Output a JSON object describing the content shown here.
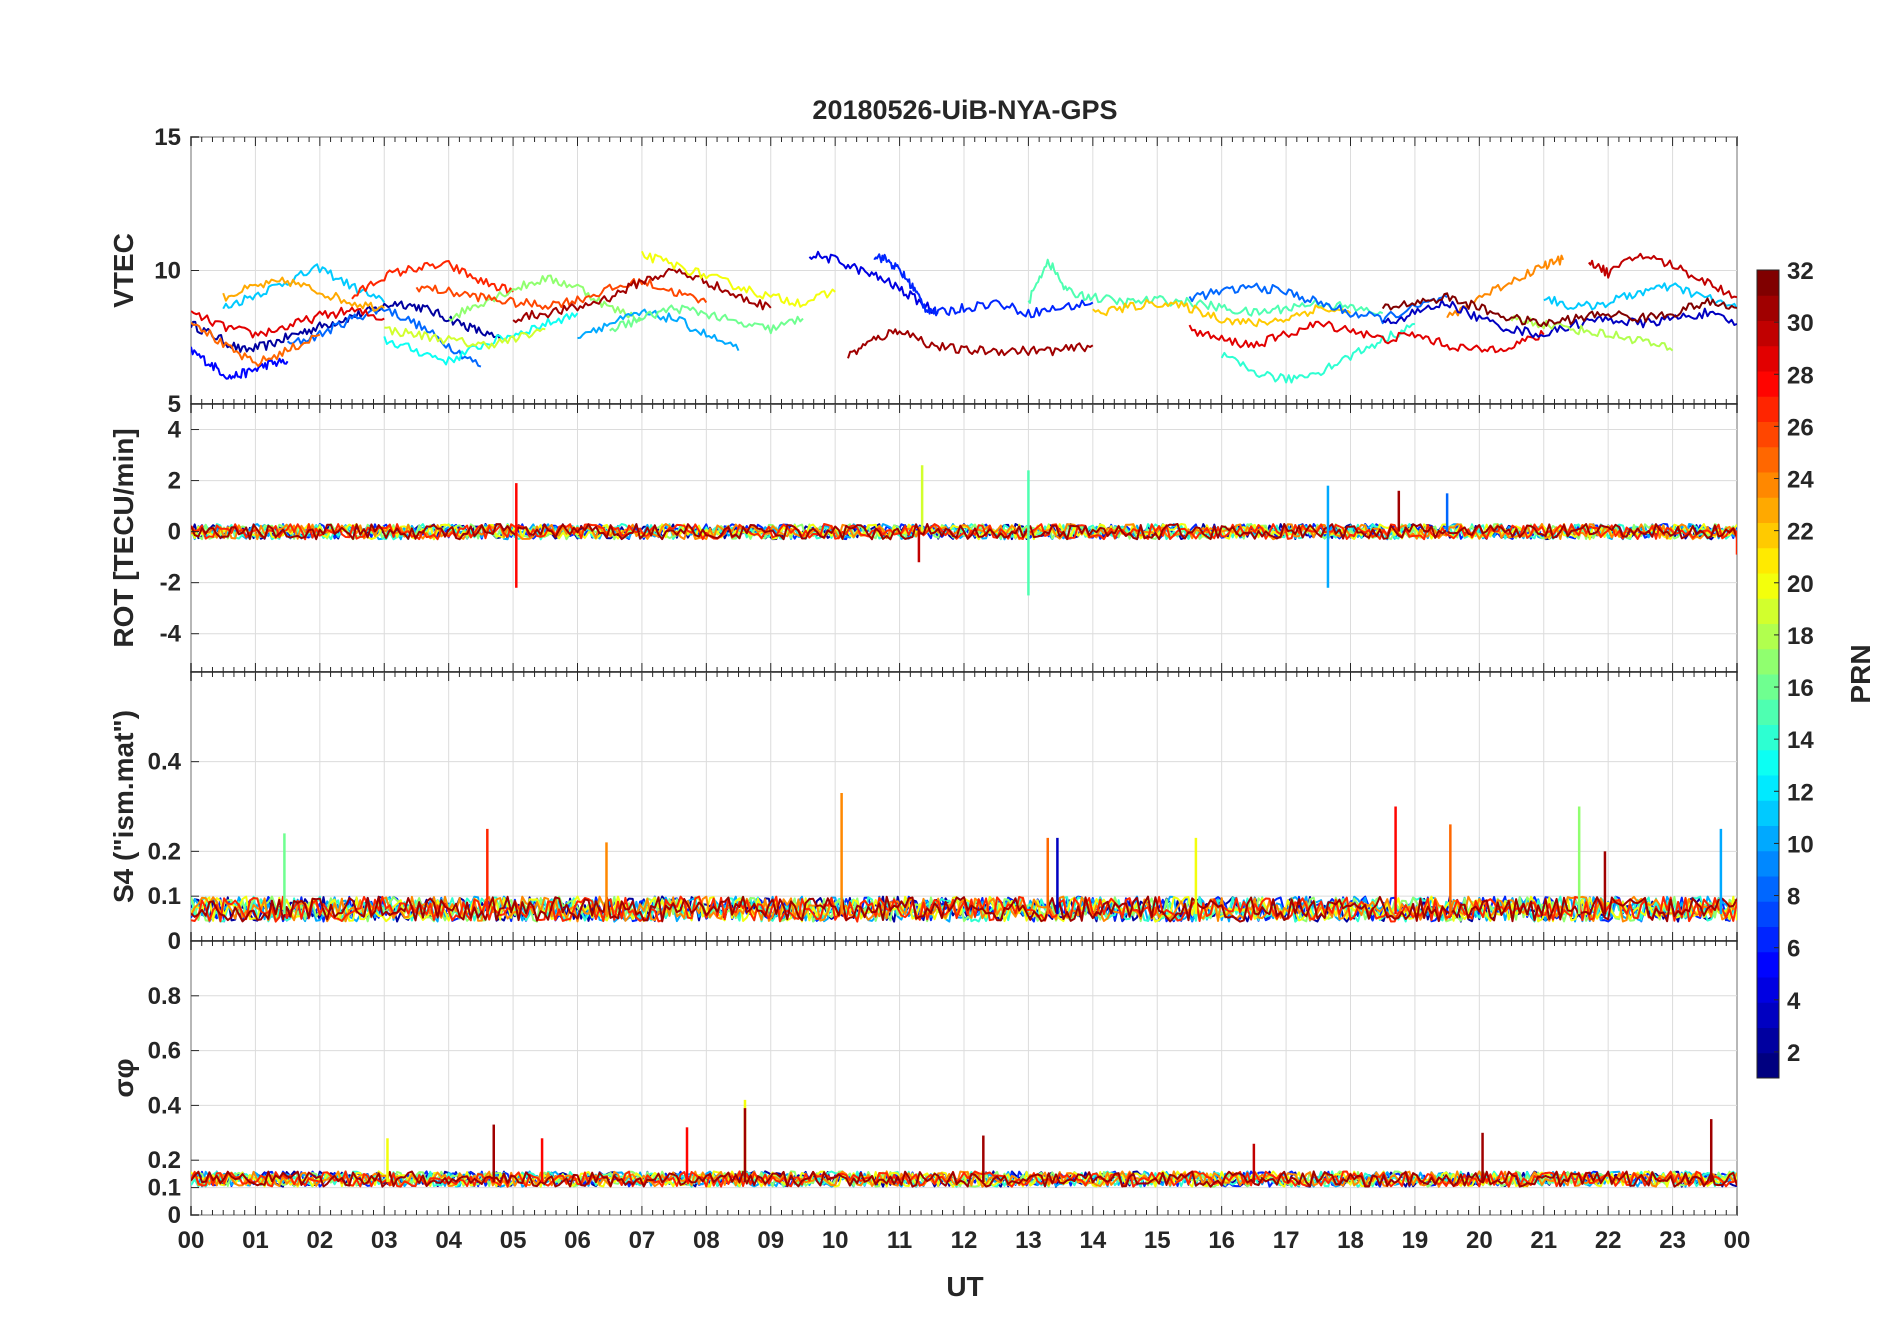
{
  "chart_data": {
    "type": "line",
    "title": "20180526-UiB-NYA-GPS",
    "xlabel": "UT",
    "x_tick_labels": [
      "00",
      "01",
      "02",
      "03",
      "04",
      "05",
      "06",
      "07",
      "08",
      "09",
      "10",
      "11",
      "12",
      "13",
      "14",
      "15",
      "16",
      "17",
      "18",
      "19",
      "20",
      "21",
      "22",
      "23",
      "00"
    ],
    "xlim": [
      0,
      24
    ],
    "colorbar": {
      "label": "PRN",
      "ticks": [
        "2",
        "4",
        "6",
        "8",
        "10",
        "12",
        "14",
        "16",
        "18",
        "20",
        "22",
        "24",
        "26",
        "28",
        "30",
        "32"
      ],
      "range": [
        1,
        32
      ],
      "colormap": "jet"
    },
    "panels": [
      {
        "id": "vtec",
        "ylabel": "VTEC",
        "ylim": [
          5,
          15
        ],
        "y_ticks": [
          5,
          10,
          15
        ],
        "y_tick_labels": [
          "5",
          "10",
          "15"
        ],
        "series": [
          {
            "prn": 2,
            "x": [
              0.0,
              0.4,
              0.8,
              1.2,
              1.6,
              2.0,
              2.4,
              2.8,
              3.2,
              3.6,
              4.0,
              4.4,
              4.8
            ],
            "y": [
              8.0,
              7.5,
              7.0,
              7.2,
              7.6,
              7.9,
              8.2,
              8.5,
              8.8,
              8.6,
              8.2,
              7.8,
              7.4
            ]
          },
          {
            "prn": 5,
            "x": [
              0.0,
              0.3,
              0.6,
              0.9,
              1.2,
              1.5
            ],
            "y": [
              7.0,
              6.5,
              6.0,
              6.2,
              6.5,
              6.6
            ]
          },
          {
            "prn": 8,
            "x": [
              1.5,
              2.0,
              2.5,
              3.0,
              3.5,
              4.0,
              4.5
            ],
            "y": [
              7.2,
              7.6,
              8.2,
              8.6,
              8.0,
              7.2,
              6.4
            ]
          },
          {
            "prn": 11,
            "x": [
              0.5,
              1.0,
              1.5,
              2.0,
              2.5,
              3.0
            ],
            "y": [
              8.6,
              9.1,
              9.6,
              10.1,
              9.4,
              8.8
            ]
          },
          {
            "prn": 13,
            "x": [
              3.0,
              3.5,
              4.0,
              4.5,
              5.0,
              5.5,
              6.0
            ],
            "y": [
              7.4,
              7.0,
              6.6,
              7.2,
              7.6,
              8.0,
              8.4
            ]
          },
          {
            "prn": 23,
            "x": [
              0.5,
              1.0,
              1.5,
              2.0,
              2.5,
              3.0
            ],
            "y": [
              9.0,
              9.4,
              9.6,
              9.2,
              8.8,
              8.6
            ]
          },
          {
            "prn": 25,
            "x": [
              0.0,
              0.5,
              1.0,
              1.5,
              2.0
            ],
            "y": [
              8.2,
              7.2,
              6.5,
              7.0,
              7.6
            ]
          },
          {
            "prn": 27,
            "x": [
              2.5,
              3.0,
              3.5,
              4.0,
              4.5,
              5.0
            ],
            "y": [
              9.0,
              9.8,
              10.1,
              10.2,
              9.6,
              9.2
            ]
          },
          {
            "prn": 29,
            "x": [
              0.0,
              0.5,
              1.0,
              1.5,
              2.0,
              2.5,
              3.0
            ],
            "y": [
              8.4,
              7.9,
              7.6,
              7.9,
              8.3,
              8.5,
              8.2
            ]
          },
          {
            "prn": 17,
            "x": [
              4.0,
              4.5,
              5.0,
              5.5,
              6.0,
              6.5,
              7.0
            ],
            "y": [
              8.2,
              8.8,
              9.3,
              9.7,
              9.4,
              8.6,
              8.2
            ]
          },
          {
            "prn": 19,
            "x": [
              3.0,
              3.5,
              4.0,
              4.5,
              5.0,
              5.5
            ],
            "y": [
              7.8,
              7.6,
              7.4,
              7.2,
              7.4,
              7.8
            ]
          },
          {
            "prn": 26,
            "x": [
              3.5,
              4.0,
              4.5,
              5.0,
              5.5,
              6.0,
              6.5,
              7.0,
              7.5,
              8.0
            ],
            "y": [
              9.4,
              9.2,
              9.0,
              8.8,
              8.7,
              8.9,
              9.3,
              9.6,
              9.2,
              8.8
            ]
          },
          {
            "prn": 31,
            "x": [
              5.0,
              5.5,
              6.0,
              6.5,
              7.0,
              7.5,
              8.0,
              8.5,
              9.0
            ],
            "y": [
              8.2,
              8.4,
              8.6,
              9.0,
              9.6,
              10.0,
              9.6,
              9.0,
              8.6
            ]
          },
          {
            "prn": 10,
            "x": [
              6.0,
              6.5,
              7.0,
              7.5,
              8.0,
              8.5
            ],
            "y": [
              7.6,
              8.0,
              8.4,
              8.2,
              7.6,
              7.0
            ]
          },
          {
            "prn": 20,
            "x": [
              7.0,
              7.5,
              8.0,
              8.5,
              9.0,
              9.5,
              10.0
            ],
            "y": [
              10.6,
              10.2,
              9.8,
              9.4,
              9.0,
              8.8,
              9.2
            ]
          },
          {
            "prn": 16,
            "x": [
              6.5,
              7.0,
              7.5,
              8.0,
              8.5,
              9.0,
              9.5
            ],
            "y": [
              7.8,
              8.2,
              8.6,
              8.4,
              8.0,
              7.8,
              8.2
            ]
          },
          {
            "prn": 4,
            "x": [
              9.6,
              10.0,
              10.4,
              10.8,
              11.2,
              11.6
            ],
            "y": [
              10.6,
              10.4,
              10.0,
              9.6,
              9.0,
              8.4
            ]
          },
          {
            "prn": 6,
            "x": [
              10.6,
              10.8,
              11.0,
              11.2,
              11.4,
              11.6,
              12.0,
              12.5,
              13.0,
              13.5,
              14.0
            ],
            "y": [
              10.6,
              10.4,
              10.0,
              9.4,
              8.6,
              8.4,
              8.6,
              8.8,
              8.4,
              8.6,
              8.8
            ]
          },
          {
            "prn": 31,
            "x": [
              10.2,
              10.6,
              11.0,
              11.5,
              12.0,
              12.5,
              13.0,
              13.5,
              14.0
            ],
            "y": [
              6.8,
              7.4,
              7.8,
              7.2,
              7.0,
              7.0,
              7.0,
              7.0,
              7.2
            ]
          },
          {
            "prn": 15,
            "x": [
              13.0,
              13.3,
              13.6,
              14.0,
              14.5,
              15.0,
              15.5,
              16.0,
              16.5,
              17.0,
              17.5,
              18.0,
              18.5
            ],
            "y": [
              8.8,
              10.4,
              9.2,
              9.0,
              8.8,
              8.9,
              8.8,
              8.6,
              8.4,
              8.6,
              8.8,
              8.6,
              8.4
            ]
          },
          {
            "prn": 22,
            "x": [
              14.0,
              14.5,
              15.0,
              15.5,
              16.0,
              16.5,
              17.0,
              17.5,
              18.0
            ],
            "y": [
              8.4,
              8.6,
              8.8,
              8.6,
              8.2,
              8.0,
              8.2,
              8.6,
              8.4
            ]
          },
          {
            "prn": 8,
            "x": [
              15.5,
              16.0,
              16.5,
              17.0,
              17.5,
              18.0,
              18.5,
              19.0,
              19.5
            ],
            "y": [
              9.0,
              9.2,
              9.4,
              9.2,
              8.8,
              8.4,
              8.2,
              8.6,
              9.0
            ]
          },
          {
            "prn": 14,
            "x": [
              16.0,
              16.5,
              17.0,
              17.5,
              18.0,
              18.5,
              19.0
            ],
            "y": [
              6.8,
              6.2,
              5.9,
              6.2,
              6.8,
              7.4,
              8.0
            ]
          },
          {
            "prn": 29,
            "x": [
              15.5,
              16.0,
              16.5,
              17.0,
              17.5,
              18.0,
              18.5,
              19.0,
              19.5,
              20.0,
              20.5,
              21.0
            ],
            "y": [
              7.8,
              7.4,
              7.2,
              7.6,
              8.0,
              7.8,
              7.4,
              7.6,
              7.2,
              7.0,
              7.2,
              7.6
            ]
          },
          {
            "prn": 24,
            "x": [
              19.5,
              20.0,
              20.5,
              21.0,
              21.3
            ],
            "y": [
              8.2,
              9.0,
              9.6,
              10.2,
              10.4
            ]
          },
          {
            "prn": 30,
            "x": [
              21.7,
              22.0,
              22.5,
              23.0,
              23.5,
              24.0
            ],
            "y": [
              10.4,
              9.9,
              10.6,
              10.2,
              9.6,
              9.0
            ]
          },
          {
            "prn": 11,
            "x": [
              21.0,
              21.5,
              22.0,
              22.5,
              23.0,
              23.5,
              24.0
            ],
            "y": [
              9.0,
              8.6,
              8.8,
              9.2,
              9.4,
              9.0,
              8.6
            ]
          },
          {
            "prn": 3,
            "x": [
              18.5,
              19.0,
              19.5,
              20.0,
              20.5,
              21.0,
              21.5,
              22.0,
              22.5,
              23.0,
              23.5,
              24.0
            ],
            "y": [
              8.0,
              8.4,
              8.8,
              8.2,
              7.8,
              7.6,
              8.0,
              8.2,
              8.0,
              8.2,
              8.4,
              8.0
            ]
          },
          {
            "prn": 18,
            "x": [
              20.5,
              21.0,
              21.5,
              22.0,
              22.5,
              23.0
            ],
            "y": [
              8.2,
              8.0,
              7.8,
              7.6,
              7.4,
              7.0
            ]
          },
          {
            "prn": 32,
            "x": [
              18.5,
              19.0,
              19.5,
              20.0,
              20.5,
              21.0,
              21.5,
              22.0,
              22.5,
              23.0,
              23.5,
              24.0
            ],
            "y": [
              8.6,
              8.8,
              9.0,
              8.6,
              8.2,
              8.0,
              8.2,
              8.4,
              8.2,
              8.4,
              8.8,
              8.6
            ]
          }
        ]
      },
      {
        "id": "rot",
        "ylabel": "ROT [TECU/min]",
        "ylim": [
          -5.5,
          5
        ],
        "y_ticks": [
          -4,
          -2,
          0,
          2,
          4
        ],
        "y_tick_labels": [
          "-4",
          "-2",
          "0",
          "2",
          "4"
        ],
        "baseline": 0,
        "noise_amplitude": 0.3,
        "spikes": [
          {
            "x": 5.05,
            "y": 1.9,
            "prn": 28
          },
          {
            "x": 5.05,
            "y": -2.2,
            "prn": 28
          },
          {
            "x": 11.35,
            "y": 2.6,
            "prn": 19
          },
          {
            "x": 11.3,
            "y": -1.2,
            "prn": 30
          },
          {
            "x": 13.0,
            "y": 2.4,
            "prn": 15
          },
          {
            "x": 13.0,
            "y": -2.5,
            "prn": 15
          },
          {
            "x": 17.65,
            "y": 1.8,
            "prn": 10
          },
          {
            "x": 17.65,
            "y": -2.2,
            "prn": 10
          },
          {
            "x": 18.75,
            "y": 1.6,
            "prn": 31
          },
          {
            "x": 19.5,
            "y": 1.5,
            "prn": 8
          },
          {
            "x": 24.0,
            "y": -0.9,
            "prn": 27
          }
        ]
      },
      {
        "id": "s4",
        "ylabel": "S4 (\"ism.mat\")",
        "ylim": [
          0,
          0.6
        ],
        "y_ticks": [
          0,
          0.1,
          0.2,
          0.4
        ],
        "y_tick_labels": [
          "0",
          "0.1",
          "0.2",
          "0.4"
        ],
        "baseline": 0.06,
        "noise_amplitude": 0.04,
        "spikes": [
          {
            "x": 1.45,
            "y": 0.24,
            "prn": 16
          },
          {
            "x": 4.6,
            "y": 0.25,
            "prn": 27
          },
          {
            "x": 6.45,
            "y": 0.22,
            "prn": 24
          },
          {
            "x": 10.1,
            "y": 0.33,
            "prn": 24
          },
          {
            "x": 13.3,
            "y": 0.23,
            "prn": 25
          },
          {
            "x": 13.45,
            "y": 0.23,
            "prn": 3
          },
          {
            "x": 15.6,
            "y": 0.23,
            "prn": 20
          },
          {
            "x": 18.7,
            "y": 0.3,
            "prn": 28
          },
          {
            "x": 19.55,
            "y": 0.26,
            "prn": 25
          },
          {
            "x": 21.55,
            "y": 0.3,
            "prn": 17
          },
          {
            "x": 21.95,
            "y": 0.2,
            "prn": 31
          },
          {
            "x": 23.75,
            "y": 0.25,
            "prn": 10
          }
        ]
      },
      {
        "id": "sigma_phi",
        "ylabel": "σφ",
        "ylim": [
          0,
          1
        ],
        "y_ticks": [
          0,
          0.1,
          0.2,
          0.4,
          0.6,
          0.8
        ],
        "y_tick_labels": [
          "0",
          "0.1",
          "0.2",
          "0.4",
          "0.6",
          "0.8"
        ],
        "baseline": 0.12,
        "noise_amplitude": 0.04,
        "spikes": [
          {
            "x": 3.05,
            "y": 0.28,
            "prn": 20
          },
          {
            "x": 4.7,
            "y": 0.33,
            "prn": 31
          },
          {
            "x": 5.45,
            "y": 0.28,
            "prn": 28
          },
          {
            "x": 7.7,
            "y": 0.32,
            "prn": 28
          },
          {
            "x": 8.6,
            "y": 0.42,
            "prn": 20
          },
          {
            "x": 8.6,
            "y": 0.39,
            "prn": 31
          },
          {
            "x": 12.3,
            "y": 0.29,
            "prn": 31
          },
          {
            "x": 16.5,
            "y": 0.26,
            "prn": 30
          },
          {
            "x": 20.05,
            "y": 0.3,
            "prn": 31
          },
          {
            "x": 23.6,
            "y": 0.35,
            "prn": 31
          }
        ]
      }
    ]
  }
}
